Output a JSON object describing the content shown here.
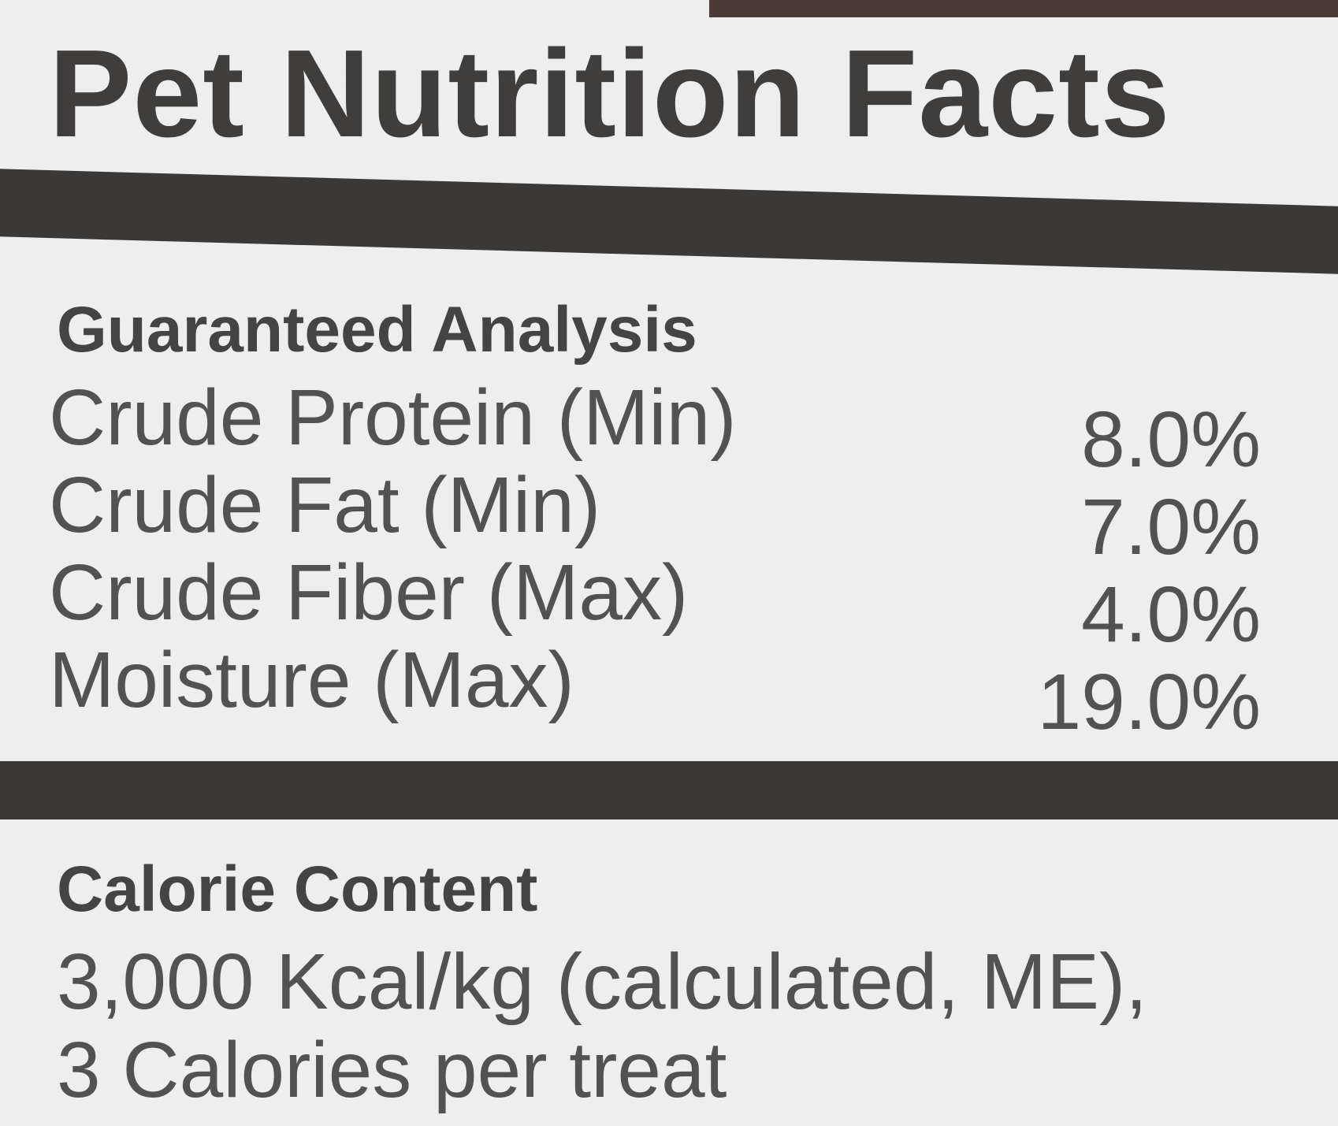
{
  "header": {
    "title": "Pet Nutrition Facts"
  },
  "guaranteed_analysis": {
    "heading": "Guaranteed Analysis",
    "rows": [
      [
        "Crude Protein (Min)",
        "8.0%"
      ],
      [
        "Crude Fat (Min)",
        "7.0%"
      ],
      [
        "Crude Fiber (Max)",
        "4.0%"
      ],
      [
        "Moisture (Max)",
        "19.0%"
      ]
    ]
  },
  "calorie_content": {
    "heading": "Calorie Content",
    "lines": [
      "3,000 Kcal/kg (calculated, ME),",
      "3 Calories per treat"
    ]
  }
}
